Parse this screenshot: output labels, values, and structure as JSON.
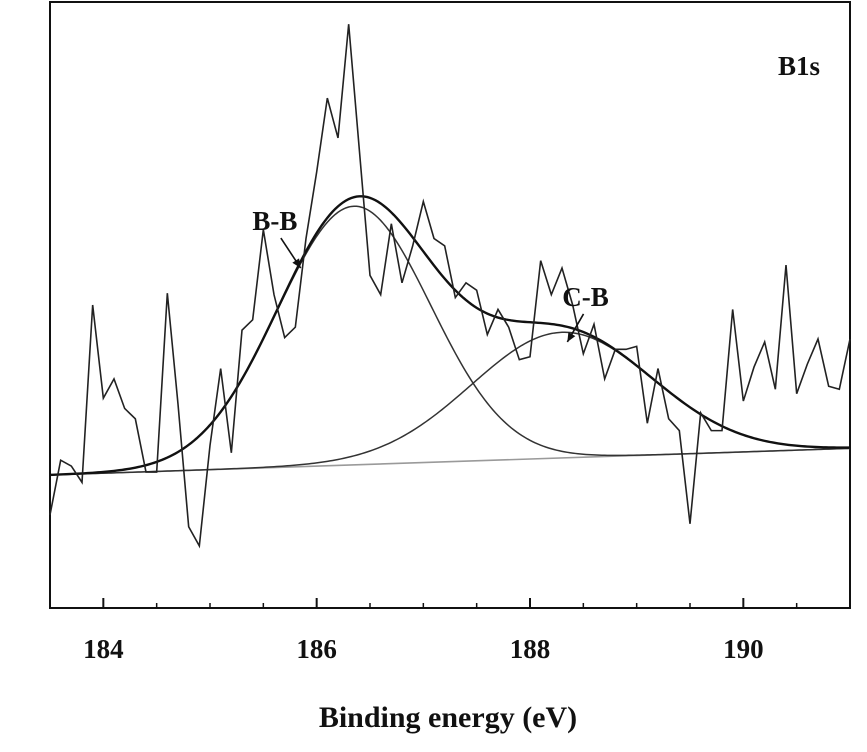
{
  "chart_data": {
    "type": "line",
    "title": "",
    "panel_label": "B1s",
    "xlabel": "Binding energy (eV)",
    "ylabel": "",
    "xlim": [
      183.5,
      191.0
    ],
    "ylim": [
      -0.9,
      3.2
    ],
    "x_ticks": [
      184,
      186,
      188,
      190
    ],
    "x_tick_labels": [
      "184",
      "186",
      "188",
      "190"
    ],
    "y_ticks_shown": false,
    "grid": false,
    "legend": "none",
    "annotations": [
      {
        "text": "B-B",
        "points_to": {
          "x": 185.85,
          "y": 1.4
        }
      },
      {
        "text": "C-B",
        "points_to": {
          "x": 188.35,
          "y": 0.9
        }
      }
    ],
    "series": [
      {
        "role": "measured",
        "color": "#222222",
        "x": [
          183.5,
          183.6,
          183.7,
          183.8,
          183.9,
          184.0,
          184.1,
          184.2,
          184.3,
          184.4,
          184.5,
          184.6,
          184.7,
          184.8,
          184.9,
          185.0,
          185.1,
          185.2,
          185.3,
          185.4,
          185.5,
          185.6,
          185.7,
          185.8,
          185.9,
          186.0,
          186.1,
          186.2,
          186.3,
          186.4,
          186.5,
          186.6,
          186.7,
          186.8,
          186.9,
          187.0,
          187.1,
          187.2,
          187.3,
          187.4,
          187.5,
          187.6,
          187.7,
          187.8,
          187.9,
          188.0,
          188.1,
          188.2,
          188.3,
          188.4,
          188.5,
          188.6,
          188.7,
          188.8,
          188.9,
          189.0,
          189.1,
          189.2,
          189.3,
          189.4,
          189.5,
          189.6,
          189.7,
          189.8,
          189.9,
          190.0,
          190.1,
          190.2,
          190.3,
          190.4,
          190.5,
          190.6,
          190.7,
          190.8,
          190.9,
          191.0
        ],
        "y": [
          -0.27,
          0.1,
          0.06,
          -0.05,
          1.15,
          0.52,
          0.65,
          0.45,
          0.38,
          0.02,
          0.02,
          1.23,
          0.48,
          -0.35,
          -0.48,
          0.2,
          0.72,
          0.15,
          0.98,
          1.05,
          1.66,
          1.22,
          0.93,
          1.0,
          1.6,
          2.05,
          2.55,
          2.28,
          3.05,
          2.2,
          1.35,
          1.22,
          1.7,
          1.3,
          1.55,
          1.85,
          1.6,
          1.55,
          1.2,
          1.3,
          1.25,
          0.95,
          1.12,
          1.0,
          0.78,
          0.8,
          1.45,
          1.22,
          1.4,
          1.15,
          0.82,
          1.02,
          0.65,
          0.85,
          0.85,
          0.87,
          0.35,
          0.72,
          0.38,
          0.3,
          -0.33,
          0.42,
          0.3,
          0.3,
          1.12,
          0.5,
          0.73,
          0.9,
          0.58,
          1.42,
          0.55,
          0.75,
          0.92,
          0.6,
          0.58,
          0.92
        ]
      },
      {
        "role": "baseline",
        "color": "#9a9a9a",
        "x": [
          183.5,
          191.0
        ],
        "y": [
          0.0,
          0.18
        ]
      },
      {
        "role": "fit-peak",
        "name": "B-B",
        "color": "#333333",
        "shape": "gaussian",
        "center": 186.35,
        "sigma": 0.72,
        "amplitude": 1.75
      },
      {
        "role": "fit-peak",
        "name": "C-B",
        "color": "#333333",
        "shape": "gaussian",
        "center": 188.3,
        "sigma": 0.85,
        "amplitude": 0.85
      },
      {
        "role": "fit-envelope",
        "color": "#111111",
        "shape": "sum-of-peaks"
      }
    ]
  }
}
